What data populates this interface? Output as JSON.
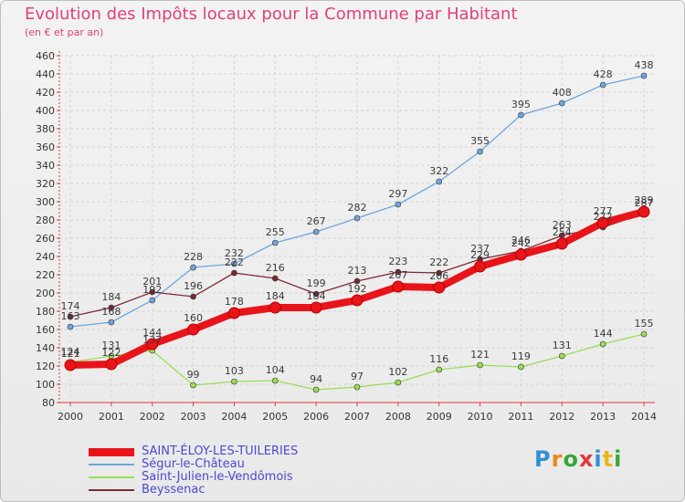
{
  "header": {
    "title": "Evolution des Impôts locaux pour la Commune par Habitant",
    "subtitle": "(en € et par an)"
  },
  "brand": {
    "letters": [
      "P",
      "r",
      "o",
      "x",
      "i",
      "t",
      "i"
    ],
    "colors": [
      "#2f8fd8",
      "#e88a1a",
      "#36a836",
      "#e03a3a",
      "#2f8fd8",
      "#e8b81a",
      "#36a836"
    ]
  },
  "chart_data": {
    "type": "line",
    "title": "Evolution des Impôts locaux pour la Commune par Habitant",
    "subtitle": "(en € et par an)",
    "xlabel": "",
    "ylabel": "",
    "x": [
      2000,
      2001,
      2002,
      2003,
      2004,
      2005,
      2006,
      2007,
      2008,
      2009,
      2010,
      2011,
      2012,
      2013,
      2014
    ],
    "ylim": [
      80,
      460
    ],
    "ytick_step": 20,
    "grid": true,
    "legend_position": "bottom-left",
    "series": [
      {
        "name": "SAINT-ÉLOY-LES-TUILERIES",
        "color": "#e8141a",
        "emphasis": true,
        "values": [
          121,
          122,
          144,
          160,
          178,
          184,
          184,
          192,
          207,
          206,
          229,
          242,
          254,
          277,
          289
        ]
      },
      {
        "name": "Ségur-le-Château",
        "color": "#6fa6dc",
        "values": [
          163,
          168,
          192,
          228,
          232,
          255,
          267,
          282,
          297,
          322,
          355,
          395,
          408,
          428,
          438
        ]
      },
      {
        "name": "Saint-Julien-le-Vendômois",
        "color": "#99dd55",
        "values": [
          124,
          131,
          137,
          99,
          103,
          104,
          94,
          97,
          102,
          116,
          121,
          119,
          131,
          144,
          155
        ]
      },
      {
        "name": "Beyssenac",
        "color": "#7a2a33",
        "values": [
          174,
          184,
          201,
          196,
          222,
          216,
          199,
          213,
          223,
          222,
          237,
          246,
          263,
          272,
          287
        ]
      }
    ]
  }
}
